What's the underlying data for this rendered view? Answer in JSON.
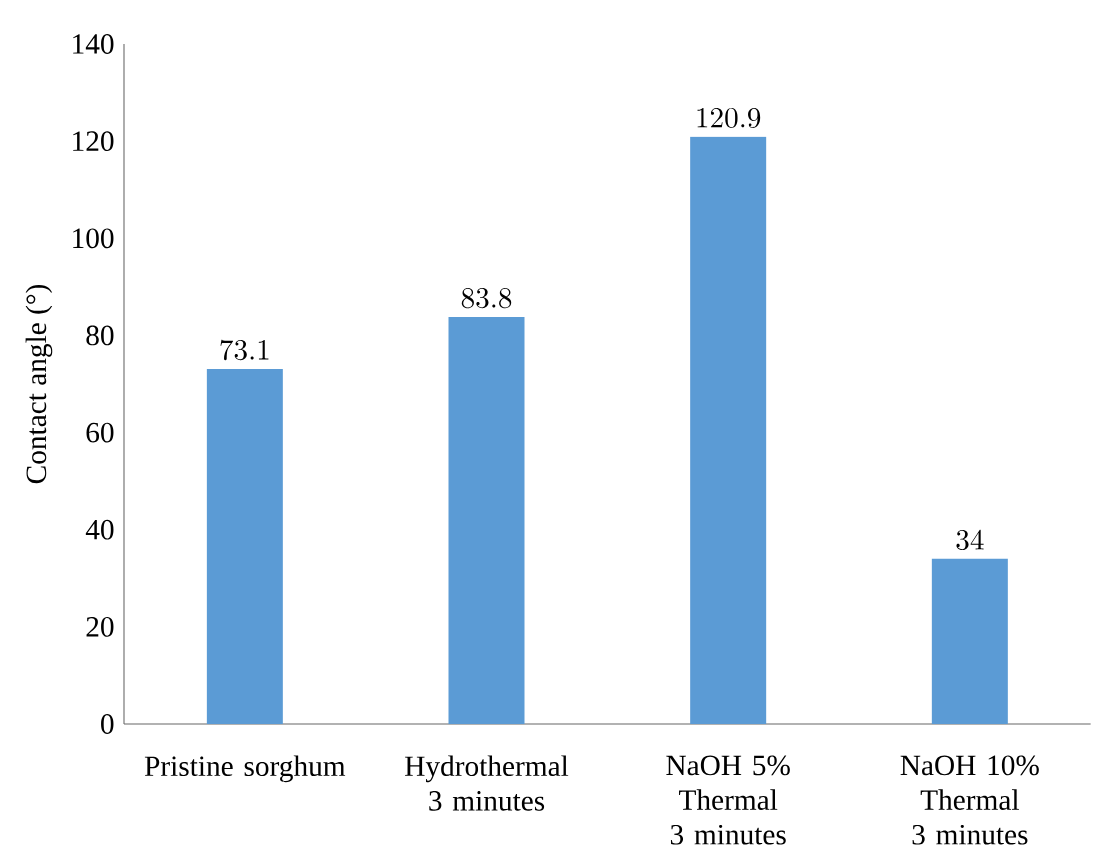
{
  "chart_data": {
    "type": "bar",
    "ylabel": "Contact angle (°)",
    "categories": [
      "Pristine sorghum",
      "Hydrothermal 3 minutes",
      "NaOH 5% Thermal 3 minutes",
      "NaOH 10% Thermal 3 minutes"
    ],
    "values": [
      73.1,
      83.8,
      120.9,
      34
    ],
    "color": "#5b9bd5",
    "ylim": [
      0,
      140
    ],
    "yticks": [
      0,
      20,
      40,
      60,
      80,
      100,
      120,
      140
    ],
    "data_labels": true
  }
}
